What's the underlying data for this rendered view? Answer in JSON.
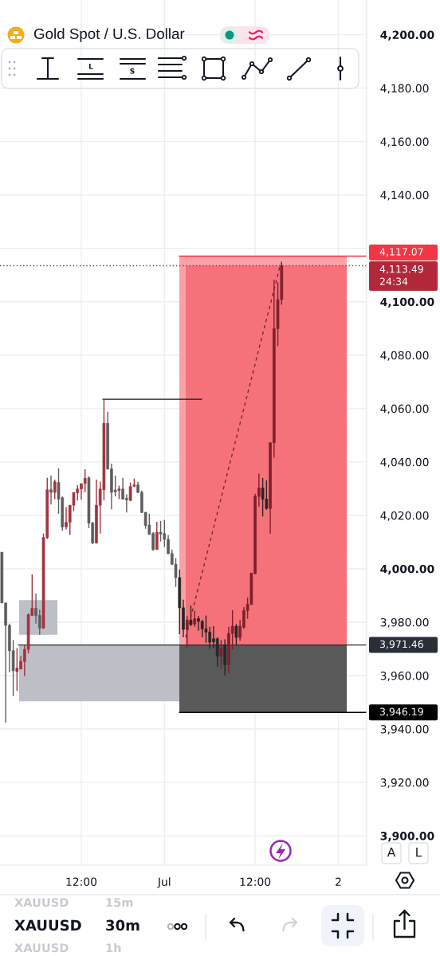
{
  "chart_data": {
    "type": "candlestick",
    "title": "Gold Spot / U.S. Dollar",
    "categories": [
      null,
      null,
      null,
      null,
      null,
      null,
      null,
      null,
      null,
      null,
      null,
      null,
      null,
      null,
      null,
      null,
      null,
      null,
      null,
      null,
      null,
      "12:00",
      null,
      null,
      null,
      null,
      null,
      null,
      null,
      null,
      null,
      null,
      null,
      null,
      null,
      null,
      null,
      null,
      null,
      null,
      null,
      null,
      null,
      "Jul",
      null,
      null,
      null,
      null,
      null,
      null,
      null,
      null,
      null,
      null,
      null,
      null,
      null,
      null,
      null,
      null,
      null,
      null,
      null,
      null,
      null,
      null,
      null,
      "12:00",
      null,
      null,
      null,
      null,
      null,
      null,
      null,
      null,
      null,
      null,
      null,
      null,
      null,
      null,
      null,
      null,
      null,
      null,
      null,
      null,
      null,
      "2",
      null,
      null,
      null,
      null,
      null,
      null,
      null
    ],
    "ohlc": [
      [
        4006.2,
        4006.2,
        3987.2,
        3987.2
      ],
      [
        3987.2,
        3987.2,
        3942.4,
        3978.8
      ],
      [
        3978.8,
        3979.5,
        3961.3,
        3969.3
      ],
      [
        3969.3,
        3973.3,
        3952.3,
        3961.8
      ],
      [
        3961.5,
        3970.3,
        3954.3,
        3962.8
      ],
      [
        3962.5,
        3967.3,
        3962.3,
        3965.3
      ],
      [
        3965.3,
        3971.3,
        3959.8,
        3969.8
      ],
      [
        3969.8,
        3983.3,
        3968.3,
        3982.8
      ],
      [
        3982.5,
        3997.9,
        3982.3,
        3985.2
      ],
      [
        3985.2,
        3990.7,
        3979.5,
        3982.5
      ],
      [
        3982.5,
        3984.7,
        3975.3,
        3977.8
      ],
      [
        3977.8,
        4013.2,
        3977.5,
        4011.7
      ],
      [
        4011.7,
        4034.1,
        4011.2,
        4029.6
      ],
      [
        4029.6,
        4034.9,
        4024.1,
        4028.6
      ],
      [
        4028.6,
        4033.4,
        4026.1,
        4032.6
      ],
      [
        4032.3,
        4037.6,
        4020.6,
        4026.1
      ],
      [
        4026.6,
        4027.1,
        4014.2,
        4015.7
      ],
      [
        4015.7,
        4023.1,
        4014.7,
        4017.4
      ],
      [
        4017.4,
        4023.8,
        4012.7,
        4023.8
      ],
      [
        4023.8,
        4028.6,
        4021.6,
        4028.6
      ],
      [
        4028.4,
        4031.3,
        4025.6,
        4029.9
      ],
      [
        4029.9,
        4031.9,
        4025.9,
        4031.9
      ],
      [
        4031.9,
        4037.3,
        4028.6,
        4033.9
      ],
      [
        4034.1,
        4034.6,
        4015.2,
        4017.1
      ],
      [
        4017.1,
        4017.6,
        4009.2,
        4009.7
      ],
      [
        4009.7,
        4033.4,
        4009.4,
        4023.8
      ],
      [
        4023.8,
        4032.6,
        4013.2,
        4029.9
      ],
      [
        4029.6,
        4063.5,
        4025.6,
        4054.5
      ],
      [
        4054.5,
        4058.8,
        4037.1,
        4037.4
      ],
      [
        4037.4,
        4039.4,
        4022.3,
        4028.6
      ],
      [
        4029.5,
        4034.9,
        4027.1,
        4028.8
      ],
      [
        4029.3,
        4031.1,
        4026.1,
        4029.9
      ],
      [
        4029.9,
        4034.1,
        4025.9,
        4026.1
      ],
      [
        4026.4,
        4027.9,
        4021.1,
        4025.8
      ],
      [
        4025.6,
        4032.3,
        4025.3,
        4030.8
      ],
      [
        4030.9,
        4033.8,
        4030.6,
        4031.4
      ],
      [
        4031.4,
        4032.6,
        4028.3,
        4028.6
      ],
      [
        4028.6,
        4029.3,
        4020.9,
        4021.1
      ],
      [
        4021.1,
        4021.3,
        4015.0,
        4016.2
      ],
      [
        4016.4,
        4020.6,
        4012.7,
        4012.9
      ],
      [
        4013.2,
        4013.7,
        4006.7,
        4007.2
      ],
      [
        4007.2,
        4017.6,
        4007.2,
        4013.7
      ],
      [
        4013.7,
        4017.9,
        4010.2,
        4013.0
      ],
      [
        4013.2,
        4018.3,
        4008.2,
        4011.0
      ],
      [
        4011.0,
        4012.7,
        4005.4,
        4005.7
      ],
      [
        4005.7,
        4007.2,
        4001.4,
        4001.7
      ],
      [
        4001.7,
        4004.0,
        3993.2,
        3996.7
      ],
      [
        3996.7,
        3999.7,
        3975.5,
        3985.4
      ],
      [
        3985.4,
        3988.4,
        3974.3,
        3977.3
      ],
      [
        3977.3,
        3982.3,
        3970.3,
        3980.8
      ],
      [
        3980.8,
        3986.2,
        3978.5,
        3979.1
      ],
      [
        3979.3,
        3984.3,
        3978.3,
        3981.3
      ],
      [
        3981.3,
        3982.3,
        3976.8,
        3980.3
      ],
      [
        3980.3,
        3980.8,
        3974.3,
        3977.5
      ],
      [
        3977.5,
        3982.5,
        3972.3,
        3976.3
      ],
      [
        3976.3,
        3978.3,
        3970.1,
        3972.5
      ],
      [
        3973.8,
        3978.5,
        3970.3,
        3972.6
      ],
      [
        3973.8,
        3974.3,
        3963.3,
        3967.3
      ],
      [
        3967.3,
        3973.3,
        3962.8,
        3970.3
      ],
      [
        3971.5,
        3973.6,
        3960.1,
        3964.1
      ],
      [
        3964.1,
        3978.3,
        3960.8,
        3975.8
      ],
      [
        3975.8,
        3984.5,
        3969.8,
        3978.5
      ],
      [
        3978.5,
        3979.3,
        3971.3,
        3974.3
      ],
      [
        3974.3,
        3980.8,
        3973.0,
        3978.5
      ],
      [
        3978.1,
        3985.7,
        3977.5,
        3984.3
      ],
      [
        3984.3,
        3989.2,
        3981.3,
        3986.7
      ],
      [
        3986.7,
        3998.4,
        3986.4,
        3998.4
      ],
      [
        3998.2,
        4028.1,
        3998.0,
        4027.1
      ],
      [
        4027.1,
        4035.6,
        4023.3,
        4030.2
      ],
      [
        4030.2,
        4034.0,
        4019.6,
        4026.1
      ],
      [
        4026.1,
        4033.1,
        4022.1,
        4022.6
      ],
      [
        4022.6,
        4047.2,
        4013.2,
        4047.2
      ],
      [
        4047.2,
        4108.3,
        4041.6,
        4089.9
      ],
      [
        4089.9,
        4107.3,
        4083.4,
        4100.8
      ],
      [
        4100.8,
        4115.0,
        4098.9,
        4113.49
      ],
      null,
      null,
      null,
      null,
      null,
      null,
      null,
      null,
      null,
      null,
      null,
      null,
      null,
      null,
      null,
      null,
      null,
      null,
      null,
      null,
      null,
      null
    ],
    "colors": [
      "#5d5d5d",
      "#5d5d5d",
      "#5d5d5d",
      "#5d5d5d",
      "#a2323e",
      "#a2323e",
      "#a2323e",
      "#a2323e",
      "#a2323e",
      "#5d5d5d",
      "#5d5d5d",
      "#a2323e",
      "#a2323e",
      "#5d5d5d",
      "#a2323e",
      "#5d5d5d",
      "#5d5d5d",
      "#a2323e",
      "#a2323e",
      "#a2323e",
      "#a2323e",
      "#a2323e",
      "#a2323e",
      "#5d5d5d",
      "#5d5d5d",
      "#a2323e",
      "#a2323e",
      "#a2323e",
      "#5d5d5d",
      "#5d5d5d",
      "#5d5d5d",
      "#a2323e",
      "#5d5d5d",
      "#5d5d5d",
      "#a2323e",
      "#a2323e",
      "#5d5d5d",
      "#5d5d5d",
      "#5d5d5d",
      "#5d5d5d",
      "#5d5d5d",
      "#a2323e",
      "#5d5d5d",
      "#5d5d5d",
      "#5d5d5d",
      "#5d5d5d",
      "#5d5d5d",
      "#262626",
      "#262626",
      "#7e1f2a",
      "#262626",
      "#7e1f2a",
      "#262626",
      "#262626",
      "#262626",
      "#262626",
      "#262626",
      "#262626",
      "#7e1f2a",
      "#262626",
      "#7e1f2a",
      "#7e1f2a",
      "#262626",
      "#7e1f2a",
      "#7e1f2a",
      "#7e1f2a",
      "#7e1f2a",
      "#7e1f2a",
      "#7e1f2a",
      "#262626",
      "#262626",
      "#7e1f2a",
      "#7e1f2a",
      "#7e1f2a",
      "#7e1f2a",
      null,
      null,
      null,
      null,
      null,
      null,
      null,
      null,
      null,
      null,
      null,
      null,
      null,
      null,
      null,
      null,
      null,
      null,
      null,
      null,
      null,
      null
    ],
    "ylim": [
      3889,
      4213
    ],
    "yticks": [
      {
        "value": 3900,
        "label": "3,900.00"
      },
      {
        "value": 3920,
        "label": "3,920.00"
      },
      {
        "value": 3940,
        "label": "3,940.00"
      },
      {
        "value": 3960,
        "label": "3,960.00"
      },
      {
        "value": 3980,
        "label": "3,980.00"
      },
      {
        "value": 4000,
        "label": "4,000.00"
      },
      {
        "value": 4020,
        "label": "4,020.00"
      },
      {
        "value": 4040,
        "label": "4,040.00"
      },
      {
        "value": 4060,
        "label": "4,060.00"
      },
      {
        "value": 4080,
        "label": "4,080.00"
      },
      {
        "value": 4100,
        "label": "4,100.00"
      },
      {
        "value": 4120,
        "label": null
      },
      {
        "value": 4140,
        "label": "4,140.00"
      },
      {
        "value": 4160,
        "label": "4,160.00"
      },
      {
        "value": 4180,
        "label": "4,180.00"
      },
      {
        "value": 4200,
        "label": "4,200.00"
      }
    ],
    "grid": true,
    "ref_lines": [
      {
        "axis": "y",
        "value": 4113.49,
        "label": "4,113.49\n24:34",
        "color": "#b2283a",
        "line_style": "dotted"
      },
      {
        "axis": "y",
        "value": 4117.07,
        "label": "4,117.07",
        "color": "#f23645"
      },
      {
        "axis": "y",
        "value": 3971.46,
        "label": "3,971.46",
        "color": "#2a2e39"
      },
      {
        "axis": "y",
        "value": 3946.19,
        "label": "3,946.19",
        "color": "#000000"
      },
      {
        "axis": "y",
        "value": 4063.5,
        "label": null,
        "color": "#131722"
      }
    ],
    "bands": [
      {
        "axis": "y",
        "from": 3971.46,
        "to": 4117.07,
        "color": "#f9a1a7"
      },
      {
        "axis": "y",
        "from": 3971.46,
        "to": 4113.49,
        "color": "#f5727b"
      },
      {
        "axis": "y",
        "from": 3950.4,
        "to": 3971.46,
        "color": "#bdbfc6"
      },
      {
        "axis": "y",
        "from": 3975.3,
        "to": 3988.3,
        "color": "#bdbfc6"
      },
      {
        "axis": "y",
        "from": 3946.19,
        "to": 3971.46,
        "color": "#595959"
      }
    ],
    "annotations": [
      "L",
      "S",
      "XAUUSD",
      "15m",
      "XAUUSD",
      "30m",
      "XAUUSD",
      "1h",
      "A",
      "L"
    ]
  }
}
